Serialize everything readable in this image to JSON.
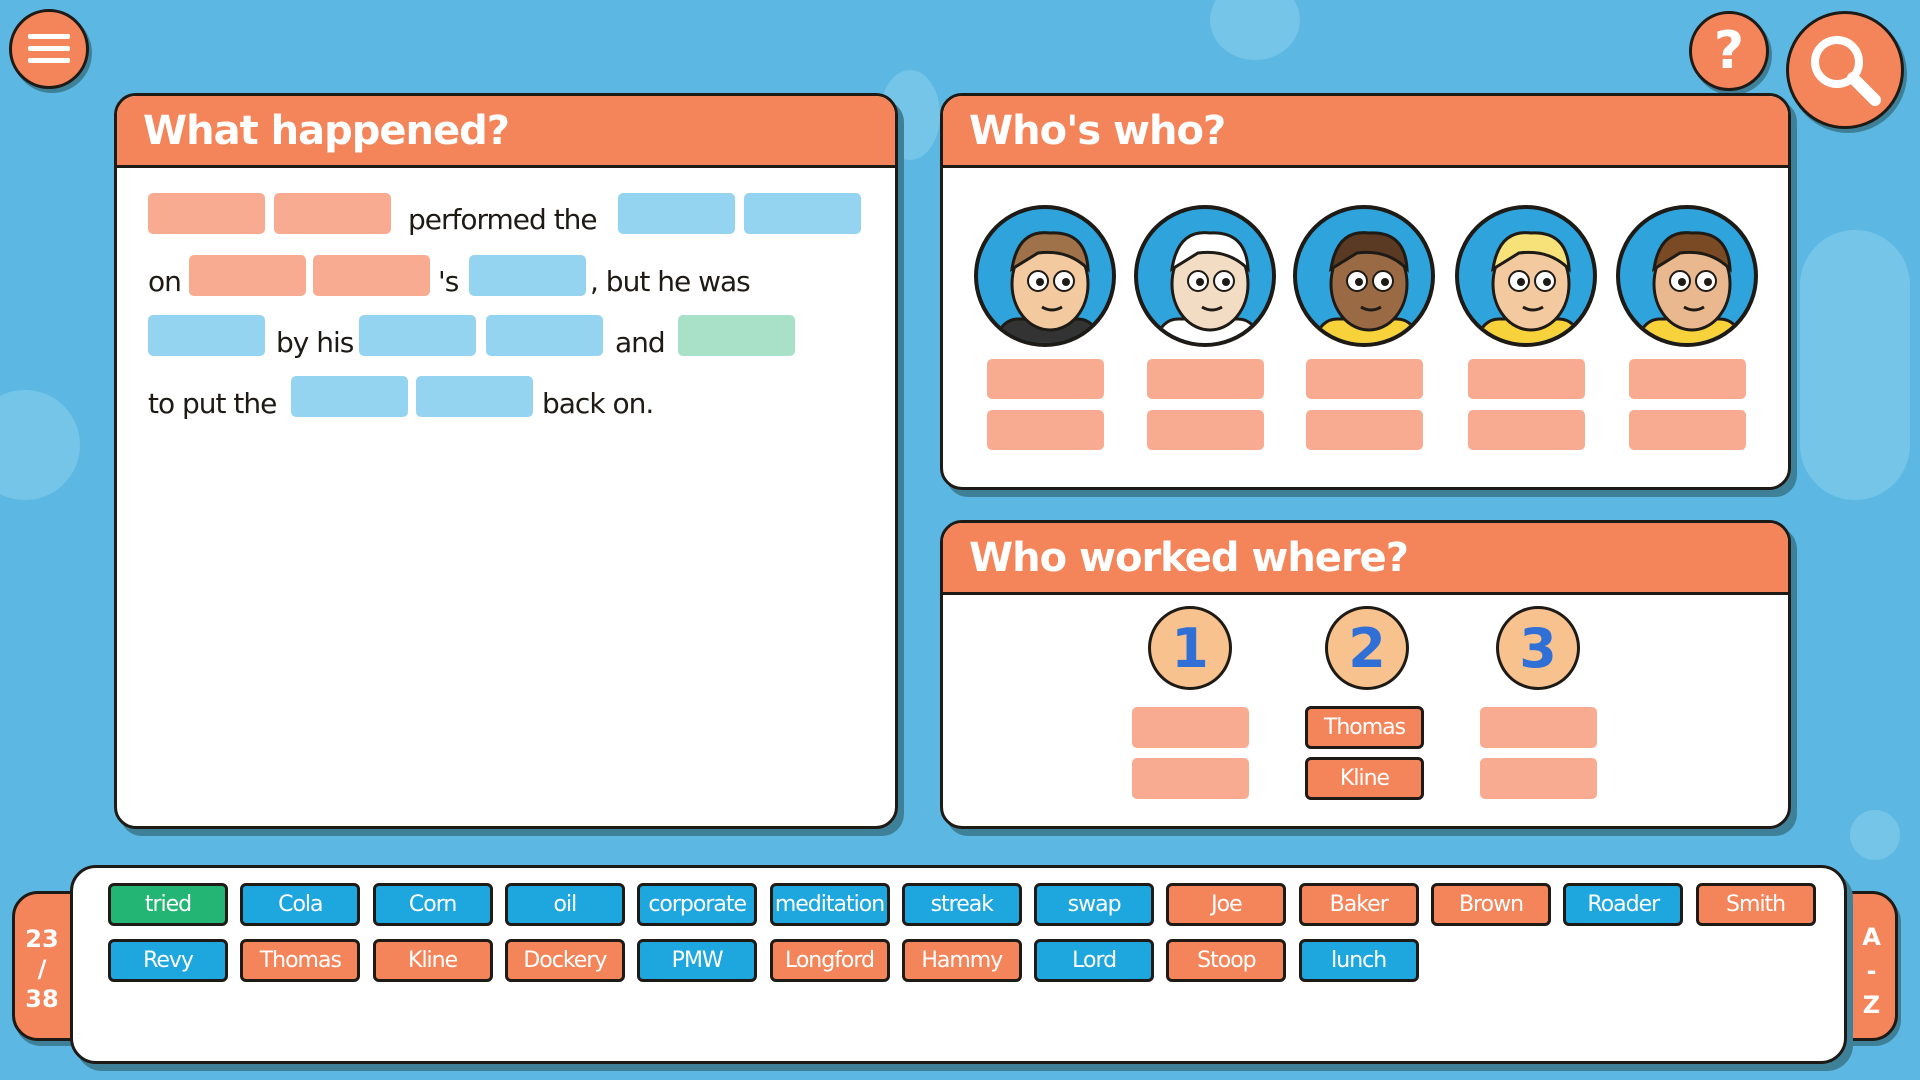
{
  "colors": {
    "background": "#5cb8e2",
    "accent": "#f4855a",
    "empty_name_slot": "#f8ab90",
    "empty_word_slot": "#95d4f0",
    "empty_verb_slot": "#a8e0c8",
    "chip_blue": "#1ea6df",
    "chip_green": "#22b573"
  },
  "toolbar": {
    "menu_icon": "hamburger-icon",
    "help_label": "?",
    "search_icon": "magnifier-icon"
  },
  "what_happened": {
    "title": "What happened?",
    "texts": [
      "performed the",
      "on",
      "'s",
      ", but he was",
      "by his",
      "and",
      "to put the",
      "back on."
    ]
  },
  "whos_who": {
    "title": "Who's who?",
    "avatars": 5
  },
  "who_worked_where": {
    "title": "Who worked where?",
    "numbers": [
      "1",
      "2",
      "3"
    ],
    "filled": {
      "first": "Thomas",
      "last": "Kline"
    }
  },
  "tray": {
    "counter_top": "23",
    "counter_sep": "/",
    "counter_bottom": "38",
    "sort": {
      "a": "A",
      "dash": "-",
      "z": "Z"
    },
    "row1": [
      {
        "label": "tried",
        "color": "green"
      },
      {
        "label": "Cola",
        "color": "blue"
      },
      {
        "label": "Corn",
        "color": "blue"
      },
      {
        "label": "oil",
        "color": "blue"
      },
      {
        "label": "corporate",
        "color": "blue"
      },
      {
        "label": "meditation",
        "color": "blue"
      },
      {
        "label": "streak",
        "color": "blue"
      },
      {
        "label": "swap",
        "color": "blue"
      },
      {
        "label": "Joe",
        "color": "orange"
      },
      {
        "label": "Baker",
        "color": "orange"
      },
      {
        "label": "Brown",
        "color": "orange"
      },
      {
        "label": "Roader",
        "color": "blue"
      },
      {
        "label": "Smith",
        "color": "orange"
      }
    ],
    "row2": [
      {
        "label": "Revy",
        "color": "blue"
      },
      {
        "label": "Thomas",
        "color": "orange"
      },
      {
        "label": "Kline",
        "color": "orange"
      },
      {
        "label": "Dockery",
        "color": "orange"
      },
      {
        "label": "PMW",
        "color": "blue"
      },
      {
        "label": "Longford",
        "color": "orange"
      },
      {
        "label": "Hammy",
        "color": "orange"
      },
      {
        "label": "Lord",
        "color": "blue"
      },
      {
        "label": "Stoop",
        "color": "orange"
      },
      {
        "label": "lunch",
        "color": "blue"
      }
    ]
  }
}
